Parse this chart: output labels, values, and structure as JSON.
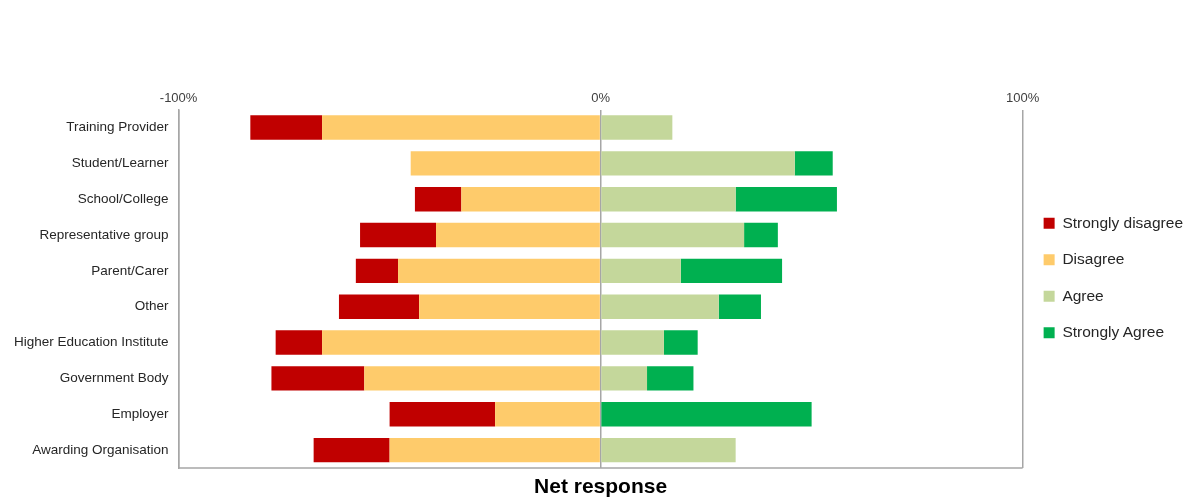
{
  "chart_data": {
    "type": "bar",
    "orientation": "horizontal",
    "stacked": true,
    "xlabel": "Net response",
    "categories": [
      "Training Provider",
      "Student/Learner",
      "School/College",
      "Representative group",
      "Parent/Carer",
      "Other",
      "Higher Education Institute",
      "Government Body",
      "Employer",
      "Awarding Organisation"
    ],
    "series": [
      {
        "name": "Disagree",
        "color": "#fecb6b",
        "values": [
          -66,
          -45,
          -33,
          -39,
          -48,
          -43,
          -66,
          -56,
          -25,
          -50
        ]
      },
      {
        "name": "Strongly disagree",
        "color": "#c00000",
        "values": [
          -17,
          0,
          -11,
          -18,
          -10,
          -19,
          -11,
          -22,
          -25,
          -18
        ]
      },
      {
        "name": "Agree",
        "color": "#c4d79b",
        "values": [
          17,
          46,
          32,
          34,
          19,
          28,
          15,
          11,
          0,
          32
        ]
      },
      {
        "name": "Strongly Agree",
        "color": "#00b050",
        "values": [
          0,
          9,
          24,
          8,
          24,
          10,
          8,
          11,
          50,
          0
        ]
      }
    ],
    "xlim": [
      -100,
      100
    ],
    "xticks": [
      {
        "value": -100,
        "label": "-100%"
      },
      {
        "value": 0,
        "label": "0%"
      },
      {
        "value": 100,
        "label": "100%"
      }
    ],
    "grid": "x",
    "legend": "right"
  }
}
